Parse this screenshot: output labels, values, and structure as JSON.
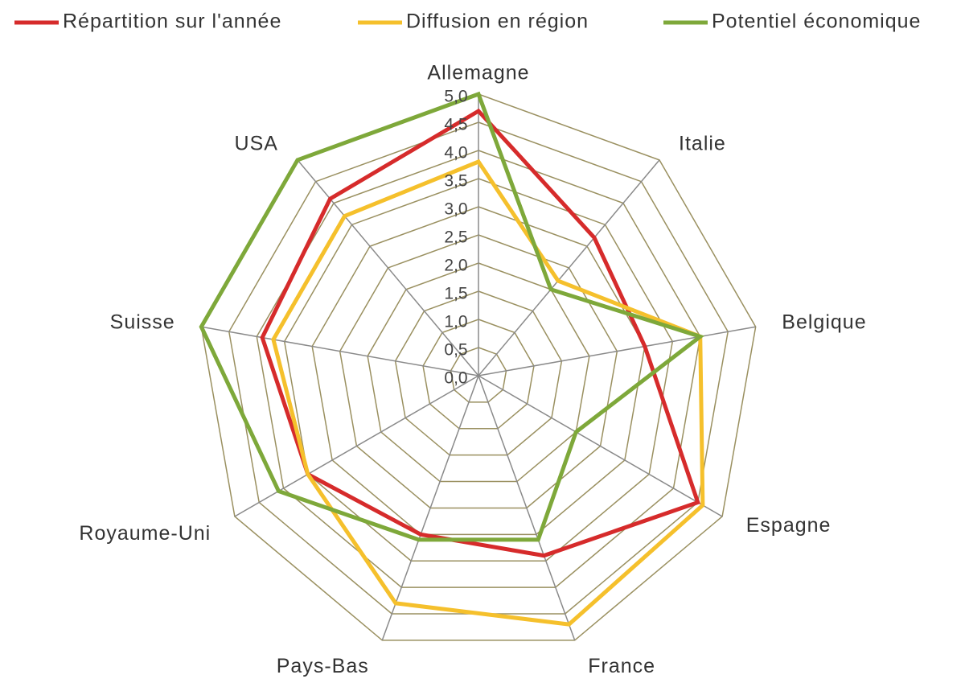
{
  "chart_data": {
    "type": "radar",
    "categories": [
      "Allemagne",
      "Italie",
      "Belgique",
      "Espagne",
      "France",
      "Pays-Bas",
      "Royaume-Uni",
      "Suisse",
      "USA"
    ],
    "series": [
      {
        "name": "Répartition sur l'année",
        "color": "#d62b2b",
        "values": [
          4.7,
          3.2,
          3.0,
          4.5,
          3.4,
          3.0,
          3.5,
          3.9,
          4.1
        ]
      },
      {
        "name": "Diffusion en région",
        "color": "#f5c02c",
        "values": [
          3.8,
          2.2,
          4.0,
          4.6,
          4.7,
          4.3,
          3.5,
          3.7,
          3.7
        ]
      },
      {
        "name": "Potentiel économique",
        "color": "#7ea83a",
        "values": [
          5.0,
          2.0,
          4.0,
          2.0,
          3.1,
          3.1,
          4.1,
          5.0,
          5.0
        ]
      }
    ],
    "rlim": [
      0,
      5
    ],
    "rticks": [
      {
        "value": 0,
        "label": "0,0"
      },
      {
        "value": 0.5,
        "label": "0,5"
      },
      {
        "value": 1,
        "label": "1,0"
      },
      {
        "value": 1.5,
        "label": "1,5"
      },
      {
        "value": 2,
        "label": "2,0"
      },
      {
        "value": 2.5,
        "label": "2,5"
      },
      {
        "value": 3,
        "label": "3,0"
      },
      {
        "value": 3.5,
        "label": "3,5"
      },
      {
        "value": 4,
        "label": "4,0"
      },
      {
        "value": 4.5,
        "label": "4,5"
      },
      {
        "value": 5,
        "label": "5,0"
      }
    ],
    "grid": true,
    "legend": "top"
  }
}
